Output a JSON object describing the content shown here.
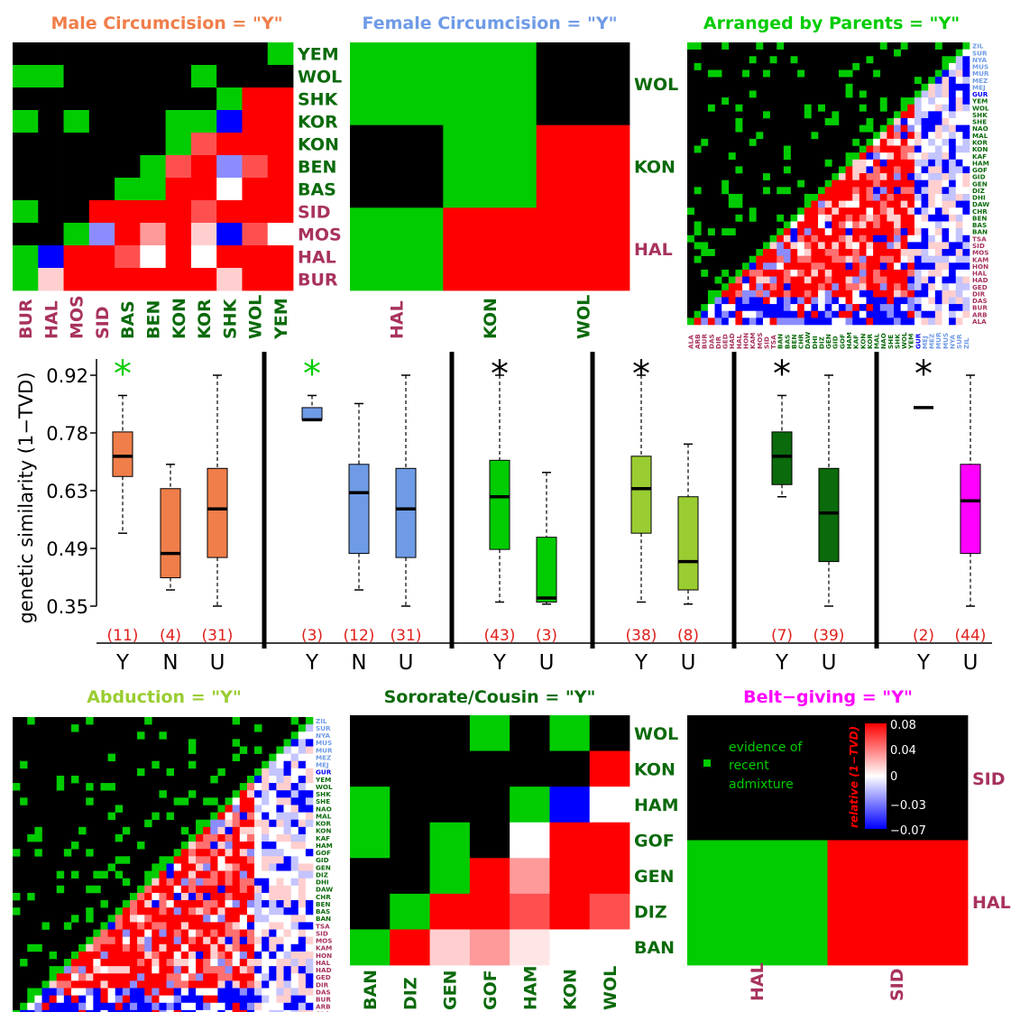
{
  "colors": {
    "maroon": "#a8325e",
    "darkgreen": "#0b6a0b",
    "lightblue": "#6f9be6",
    "green": "#00cc00",
    "red": "#ff0000",
    "blue": "#0000ff",
    "black": "#000000",
    "ctext_red": "#e0201c"
  },
  "panels": {
    "male": {
      "title": "Male Circumcision = \"Y\"",
      "title_color": "#f07e4a",
      "labels": [
        "BUR",
        "HAL",
        "MOS",
        "SID",
        "BAS",
        "BEN",
        "KON",
        "KOR",
        "SHK",
        "WOL",
        "YEM"
      ],
      "label_groups": [
        "maroon",
        "maroon",
        "maroon",
        "maroon",
        "darkgreen",
        "darkgreen",
        "darkgreen",
        "darkgreen",
        "darkgreen",
        "darkgreen",
        "darkgreen"
      ],
      "cells": [
        "KKKKKKKKKKG",
        "GGKKKKKGKKK",
        "KKKKKKKKGRR",
        "GKGKKKGGbRR",
        "KKKKKKGrRRR",
        "KKKKKGrRmrR",
        "KKKKGGRRwRR",
        "GKKRRRRrRRR",
        "KKGmRpRqbrw",
        "GbRRrwRwRRR",
        "GqRRRRRRqRR"
      ]
    },
    "female": {
      "title": "Female Circumcision = \"Y\"",
      "title_color": "#6f9be6",
      "labels": [
        "HAL",
        "KON",
        "WOL"
      ],
      "label_groups": [
        "maroon",
        "darkgreen",
        "darkgreen"
      ],
      "cells": [
        "GGK",
        "KGR",
        "GRR"
      ]
    },
    "arranged": {
      "title": "Arranged by Parents = \"Y\""
    },
    "abduction": {
      "title": "Abduction = \"Y\""
    },
    "sororate": {
      "title": "Sororate/Cousin = \"Y\"",
      "labels": [
        "BAN",
        "DIZ",
        "GEN",
        "GOF",
        "HAM",
        "KON",
        "WOL"
      ],
      "cells": [
        "KKKGKGK",
        "KKKKKKR",
        "GKKKGbw",
        "GKGKwRR",
        "KKGRpRR",
        "KGRRrRr",
        "GRqpvww"
      ]
    },
    "belt": {
      "title": "Belt−giving = \"Y\"",
      "title_color": "#ff00ff",
      "labels": [
        "HAL",
        "SID"
      ],
      "cells": [
        "KK",
        "GR"
      ],
      "legend_text": [
        "evidence of",
        "recent",
        "admixture"
      ],
      "colorbar_title": "relative (1−TVD)",
      "colorbar_ticks": [
        "0.08",
        "0.04",
        "0",
        "−0.03",
        "−0.07"
      ]
    }
  },
  "tri_labels": [
    "ALA",
    "ARB",
    "BUR",
    "DAS",
    "DIR",
    "GED",
    "HAD",
    "HAL",
    "HON",
    "KAM",
    "MOS",
    "SID",
    "TSA",
    "BAN",
    "BAS",
    "BEN",
    "CHR",
    "DAW",
    "DHI",
    "DIZ",
    "GEN",
    "GID",
    "GOF",
    "HAM",
    "KAF",
    "KON",
    "KOR",
    "MAL",
    "NAO",
    "SHE",
    "SHK",
    "WOL",
    "YEM",
    "GUR",
    "MEJ",
    "MEZ",
    "MUR",
    "MUS",
    "NYA",
    "SUR",
    "ZIL"
  ],
  "tri_label_groups": [
    "maroon",
    "maroon",
    "maroon",
    "maroon",
    "maroon",
    "maroon",
    "maroon",
    "maroon",
    "maroon",
    "maroon",
    "maroon",
    "maroon",
    "maroon",
    "darkgreen",
    "darkgreen",
    "darkgreen",
    "darkgreen",
    "darkgreen",
    "darkgreen",
    "darkgreen",
    "darkgreen",
    "darkgreen",
    "darkgreen",
    "darkgreen",
    "darkgreen",
    "darkgreen",
    "darkgreen",
    "darkgreen",
    "darkgreen",
    "darkgreen",
    "darkgreen",
    "darkgreen",
    "darkgreen",
    "blue",
    "lightblue",
    "lightblue",
    "lightblue",
    "lightblue",
    "lightblue",
    "lightblue",
    "lightblue"
  ],
  "chart_data": {
    "type": "box",
    "ylabel": "genetic similarity (1−TVD)",
    "yticks": [
      "0.92",
      "0.78",
      "0.63",
      "0.49",
      "0.35"
    ],
    "ylim": [
      0.3,
      0.96
    ],
    "groups": [
      {
        "color": "#f07e4a",
        "star": "*",
        "star_color": "#00cc00",
        "boxes": [
          {
            "label": "Y",
            "count": "(11)",
            "min": 0.53,
            "q1": 0.67,
            "median": 0.72,
            "q3": 0.78,
            "max": 0.87
          },
          {
            "label": "N",
            "count": "(4)",
            "min": 0.39,
            "q1": 0.42,
            "median": 0.48,
            "q3": 0.64,
            "max": 0.7
          },
          {
            "label": "U",
            "count": "(31)",
            "min": 0.35,
            "q1": 0.47,
            "median": 0.59,
            "q3": 0.69,
            "max": 0.92
          }
        ]
      },
      {
        "color": "#6f9be6",
        "star": "*",
        "star_color": "#00cc00",
        "boxes": [
          {
            "label": "Y",
            "count": "(3)",
            "min": 0.81,
            "q1": 0.81,
            "median": 0.81,
            "q3": 0.84,
            "max": 0.87
          },
          {
            "label": "N",
            "count": "(12)",
            "min": 0.39,
            "q1": 0.48,
            "median": 0.63,
            "q3": 0.7,
            "max": 0.85
          },
          {
            "label": "U",
            "count": "(31)",
            "min": 0.35,
            "q1": 0.47,
            "median": 0.59,
            "q3": 0.69,
            "max": 0.92
          }
        ]
      },
      {
        "color": "#00cc00",
        "star": "*",
        "star_color": "#000000",
        "boxes": [
          {
            "label": "Y",
            "count": "(43)",
            "min": 0.36,
            "q1": 0.49,
            "median": 0.62,
            "q3": 0.71,
            "max": 0.92
          },
          {
            "label": "U",
            "count": "(3)",
            "min": 0.355,
            "q1": 0.36,
            "median": 0.37,
            "q3": 0.52,
            "max": 0.68
          }
        ]
      },
      {
        "color": "#9acd32",
        "star": "*",
        "star_color": "#000000",
        "boxes": [
          {
            "label": "Y",
            "count": "(38)",
            "min": 0.36,
            "q1": 0.53,
            "median": 0.64,
            "q3": 0.72,
            "max": 0.92
          },
          {
            "label": "U",
            "count": "(8)",
            "min": 0.355,
            "q1": 0.39,
            "median": 0.46,
            "q3": 0.62,
            "max": 0.75
          }
        ]
      },
      {
        "color": "#0b6a0b",
        "star": "*",
        "star_color": "#000000",
        "boxes": [
          {
            "label": "Y",
            "count": "(7)",
            "min": 0.62,
            "q1": 0.65,
            "median": 0.72,
            "q3": 0.78,
            "max": 0.87
          },
          {
            "label": "U",
            "count": "(39)",
            "min": 0.35,
            "q1": 0.46,
            "median": 0.58,
            "q3": 0.69,
            "max": 0.92
          }
        ]
      },
      {
        "color": "#ff00ff",
        "star": "*",
        "star_color": "#000000",
        "boxes": [
          {
            "label": "Y",
            "count": "(2)",
            "min": 0.84,
            "q1": 0.84,
            "median": 0.84,
            "q3": 0.84,
            "max": 0.84
          },
          {
            "label": "U",
            "count": "(44)",
            "min": 0.35,
            "q1": 0.48,
            "median": 0.61,
            "q3": 0.7,
            "max": 0.92
          }
        ]
      }
    ]
  }
}
